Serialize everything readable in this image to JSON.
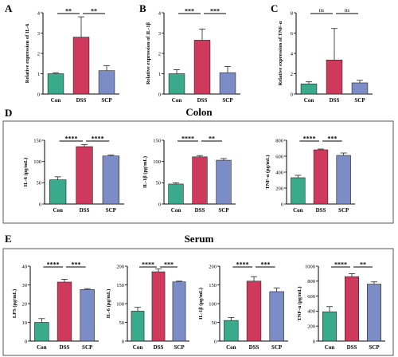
{
  "groups": [
    {
      "title": "",
      "label": ""
    },
    {
      "title": "Colon",
      "label": "D"
    },
    {
      "title": "Serum",
      "label": "E"
    }
  ],
  "colors": {
    "Con": "#3aaa8c",
    "DSS": "#cf3a5c",
    "SCP": "#7b8cc6",
    "box": "#555555"
  },
  "chart_data": [
    {
      "panel": "A",
      "type": "bar",
      "categories": [
        "Con",
        "DSS",
        "SCP"
      ],
      "values": [
        1.0,
        2.8,
        1.15
      ],
      "errors": [
        0.05,
        1.0,
        0.25
      ],
      "ylabel": "Relative expression of IL-6",
      "ylim": [
        0,
        4
      ],
      "yticks": [
        0,
        1,
        2,
        3,
        4
      ],
      "significance": [
        {
          "from": 0,
          "to": 1,
          "label": "**"
        },
        {
          "from": 1,
          "to": 2,
          "label": "**"
        }
      ]
    },
    {
      "panel": "B",
      "type": "bar",
      "categories": [
        "Con",
        "DSS",
        "SCP"
      ],
      "values": [
        1.0,
        2.65,
        1.05
      ],
      "errors": [
        0.2,
        0.55,
        0.3
      ],
      "ylabel": "Relative expression of IL-1β",
      "ylim": [
        0,
        4
      ],
      "yticks": [
        0,
        1,
        2,
        3,
        4
      ],
      "significance": [
        {
          "from": 0,
          "to": 1,
          "label": "***"
        },
        {
          "from": 1,
          "to": 2,
          "label": "***"
        }
      ]
    },
    {
      "panel": "C",
      "type": "bar",
      "categories": [
        "Con",
        "DSS",
        "SCP"
      ],
      "values": [
        1.0,
        3.35,
        1.1
      ],
      "errors": [
        0.2,
        3.1,
        0.25
      ],
      "ylabel": "Relative expression of TNF-α",
      "ylim": [
        0,
        8
      ],
      "yticks": [
        0,
        2,
        4,
        6,
        8
      ],
      "significance": [
        {
          "from": 0,
          "to": 1,
          "label": "ns"
        },
        {
          "from": 1,
          "to": 2,
          "label": "ns"
        }
      ]
    },
    {
      "panel": "D1",
      "type": "bar",
      "categories": [
        "Con",
        "DSS",
        "SCP"
      ],
      "values": [
        57,
        135,
        113
      ],
      "errors": [
        7,
        5,
        2
      ],
      "ylabel": "IL-6 (pg/mL)",
      "ylim": [
        0,
        150
      ],
      "yticks": [
        0,
        50,
        100,
        150
      ],
      "significance": [
        {
          "from": 0,
          "to": 1,
          "label": "****"
        },
        {
          "from": 1,
          "to": 2,
          "label": "****"
        }
      ]
    },
    {
      "panel": "D2",
      "type": "bar",
      "categories": [
        "Con",
        "DSS",
        "SCP"
      ],
      "values": [
        47,
        111,
        103
      ],
      "errors": [
        3,
        3,
        4
      ],
      "ylabel": "IL-1β (pg/mL)",
      "ylim": [
        0,
        150
      ],
      "yticks": [
        0,
        50,
        100,
        150
      ],
      "significance": [
        {
          "from": 0,
          "to": 1,
          "label": "****"
        },
        {
          "from": 1,
          "to": 2,
          "label": "**"
        }
      ]
    },
    {
      "panel": "D3",
      "type": "bar",
      "categories": [
        "Con",
        "DSS",
        "SCP"
      ],
      "values": [
        330,
        680,
        610
      ],
      "errors": [
        30,
        10,
        30
      ],
      "ylabel": "TNF-α (pg/mL)",
      "ylim": [
        0,
        800
      ],
      "yticks": [
        0,
        200,
        400,
        600,
        800
      ],
      "significance": [
        {
          "from": 0,
          "to": 1,
          "label": "****"
        },
        {
          "from": 1,
          "to": 2,
          "label": "***"
        }
      ]
    },
    {
      "panel": "E1",
      "type": "bar",
      "categories": [
        "Con",
        "DSS",
        "SCP"
      ],
      "values": [
        10,
        31.5,
        27.5
      ],
      "errors": [
        2,
        1.5,
        0.5
      ],
      "ylabel": "LPS (pg/mL)",
      "ylim": [
        0,
        40
      ],
      "yticks": [
        0,
        10,
        20,
        30,
        40
      ],
      "significance": [
        {
          "from": 0,
          "to": 1,
          "label": "****"
        },
        {
          "from": 1,
          "to": 2,
          "label": "***"
        }
      ]
    },
    {
      "panel": "E2",
      "type": "bar",
      "categories": [
        "Con",
        "DSS",
        "SCP"
      ],
      "values": [
        80,
        185,
        158
      ],
      "errors": [
        10,
        8,
        2
      ],
      "ylabel": "IL-6 (pg/mL)",
      "ylim": [
        0,
        200
      ],
      "yticks": [
        0,
        50,
        100,
        150,
        200
      ],
      "significance": [
        {
          "from": 0,
          "to": 1,
          "label": "****"
        },
        {
          "from": 1,
          "to": 2,
          "label": "***"
        }
      ]
    },
    {
      "panel": "E3",
      "type": "bar",
      "categories": [
        "Con",
        "DSS",
        "SCP"
      ],
      "values": [
        55,
        160,
        132
      ],
      "errors": [
        8,
        12,
        10
      ],
      "ylabel": "IL-1β (pg/mL)",
      "ylim": [
        0,
        200
      ],
      "yticks": [
        0,
        50,
        100,
        150,
        200
      ],
      "significance": [
        {
          "from": 0,
          "to": 1,
          "label": "****"
        },
        {
          "from": 1,
          "to": 2,
          "label": "***"
        }
      ]
    },
    {
      "panel": "E4",
      "type": "bar",
      "categories": [
        "Con",
        "DSS",
        "SCP"
      ],
      "values": [
        390,
        860,
        760
      ],
      "errors": [
        70,
        40,
        30
      ],
      "ylabel": "TNF-α (pg/mL)",
      "ylim": [
        0,
        1000
      ],
      "yticks": [
        0,
        200,
        400,
        600,
        800,
        1000
      ],
      "significance": [
        {
          "from": 0,
          "to": 1,
          "label": "****"
        },
        {
          "from": 1,
          "to": 2,
          "label": "**"
        }
      ]
    }
  ]
}
